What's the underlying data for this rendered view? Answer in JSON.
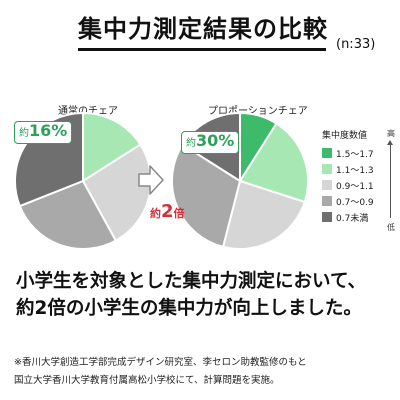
{
  "title": "集中力測定結果の比較",
  "sample_size": "(n:33)",
  "chart_data": [
    {
      "type": "pie",
      "title": "通常のチェア",
      "categories": [
        "1.5〜1.7",
        "1.1〜1.3",
        "0.9〜1.1",
        "0.7〜0.9",
        "0.7未満"
      ],
      "values": [
        0,
        16,
        26,
        27,
        31
      ],
      "colors": [
        "#3dbb6a",
        "#a6e7b4",
        "#d6d6d6",
        "#a9a9a9",
        "#6f6f6f"
      ]
    },
    {
      "type": "pie",
      "title": "プロポーションチェア",
      "categories": [
        "1.5〜1.7",
        "1.1〜1.3",
        "0.9〜1.1",
        "0.7〜0.9",
        "0.7未満"
      ],
      "values": [
        9,
        21,
        24,
        30,
        16
      ],
      "colors": [
        "#3dbb6a",
        "#a6e7b4",
        "#d6d6d6",
        "#a9a9a9",
        "#6f6f6f"
      ]
    }
  ],
  "callouts": {
    "left": {
      "prefix": "約",
      "value": "16%"
    },
    "right": {
      "prefix": "約",
      "value": "30%"
    }
  },
  "comparison": {
    "prefix": "約",
    "number": "2",
    "suffix": "倍"
  },
  "legend": {
    "title": "集中度数値",
    "scale_high": "高",
    "scale_low": "低"
  },
  "headline": {
    "line1": "小学生を対象とした集中力測定において、",
    "line2": "約2倍の小学生の集中力が向上しました。"
  },
  "footnote": {
    "line1": "※香川大学創造工学部完成デザイン研究室、李セロン助教監修のもと",
    "line2": "国立大学香川大学教育付属高松小学校にて、計算問題を実施。"
  }
}
